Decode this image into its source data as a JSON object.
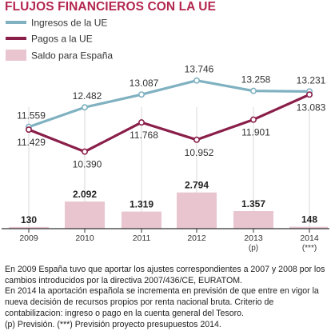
{
  "title": "FLUJOS FINANCIEROS CON LA UE",
  "legend": {
    "ingresos": "Ingresos de la UE",
    "pagos": "Pagos a la UE",
    "saldo": "Saldo para España"
  },
  "colors": {
    "title": "#b3274f",
    "ingresos": "#7fb1c1",
    "pagos": "#8a1f4a",
    "saldo": "#e8c5cf",
    "axis": "#333333"
  },
  "chart_data": {
    "type": "line",
    "title": "FLUJOS FINANCIEROS CON LA UE",
    "categories": [
      "2009",
      "2010",
      "2011",
      "2012",
      "2013",
      "2014"
    ],
    "category_notes": [
      "",
      "",
      "",
      "",
      "(p)",
      "(***)"
    ],
    "series": [
      {
        "name": "Ingresos de la UE",
        "type": "line",
        "values": [
          11559,
          12482,
          13087,
          13746,
          13258,
          13231
        ],
        "labels": [
          "11.559",
          "12.482",
          "13.087",
          "13.746",
          "13.258",
          "13.231"
        ]
      },
      {
        "name": "Pagos a la UE",
        "type": "line",
        "values": [
          11429,
          10390,
          11768,
          10952,
          11901,
          13083
        ],
        "labels": [
          "11.429",
          "10.390",
          "11.768",
          "10.952",
          "11.901",
          "13.083"
        ]
      },
      {
        "name": "Saldo para España",
        "type": "bar",
        "values": [
          130,
          2092,
          1319,
          2794,
          1357,
          148
        ],
        "labels": [
          "130",
          "2.092",
          "1.319",
          "2.794",
          "1.357",
          "148"
        ]
      }
    ],
    "legend_position": "top-left",
    "grid": false
  },
  "notes": [
    "En 2009 España tuvo que aportar los ajustes correspondientes a 2007 y 2008 por los cambios introducidos por la directiva 2007/436/CE, EURATOM.",
    "En 2014 la aportación española se incrementa en previsión de que entre en vigor la nueva decisión de recursos propios por renta nacional bruta.  Criterio de contabilizacion:  ingreso o pago en la cuenta general del Tesoro.",
    "(p) Previsión. (***) Previsión proyecto presupuestos 2014."
  ]
}
